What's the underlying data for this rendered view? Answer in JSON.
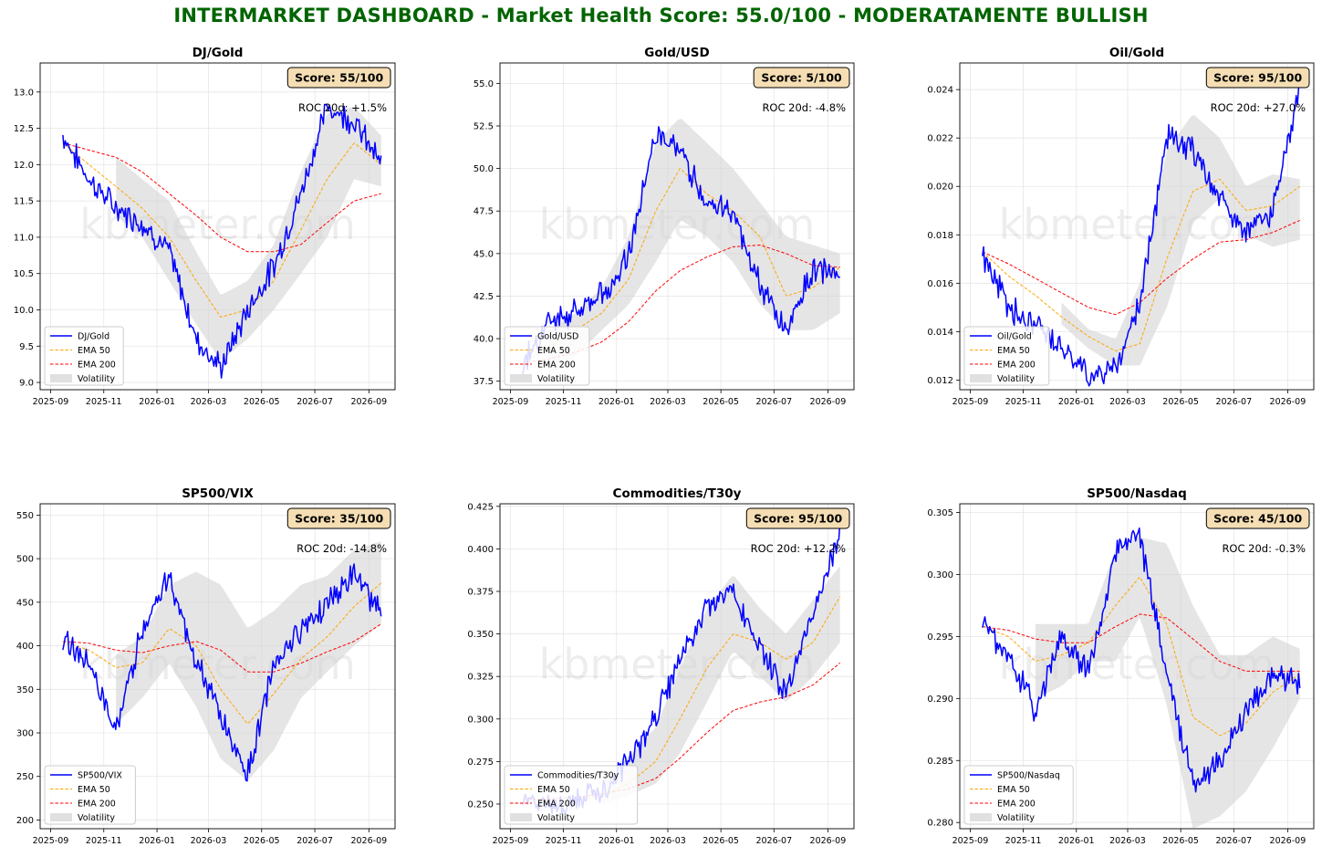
{
  "title": "INTERMARKET DASHBOARD - Market Health Score: 55.0/100 - MODERATAMENTE BULLISH",
  "watermark": "kbmeter.com",
  "colors": {
    "title": "#006400",
    "price": "#0000ff",
    "ema50": "#ffa500",
    "ema200": "#ff0000",
    "volatility": "#d3d3d3",
    "score_box": "#f5deb3"
  },
  "legend_labels": [
    "EMA 50",
    "EMA 200",
    "Volatility"
  ],
  "x_ticks": [
    "2025-09",
    "2025-11",
    "2026-01",
    "2026-03",
    "2026-05",
    "2026-07",
    "2026-09"
  ],
  "chart_data": [
    {
      "type": "line",
      "title": "DJ/Gold",
      "score": "Score: 55/100",
      "roc": "ROC 20d: +1.5%",
      "ylim": [
        8.9,
        13.4
      ],
      "yticks": [
        9.0,
        9.5,
        10.0,
        10.5,
        11.0,
        11.5,
        12.0,
        12.5,
        13.0
      ],
      "ydec": 1,
      "x": [
        "2025-09-15",
        "2025-10-15",
        "2025-11-15",
        "2025-12-15",
        "2026-01-15",
        "2026-02-15",
        "2026-03-15",
        "2026-04-15",
        "2026-05-15",
        "2026-06-15",
        "2026-07-15",
        "2026-08-15",
        "2026-09-15"
      ],
      "series": [
        {
          "name": "DJ/Gold",
          "values": [
            12.4,
            11.8,
            11.4,
            11.2,
            10.8,
            9.6,
            9.2,
            10.0,
            10.6,
            11.6,
            12.8,
            12.6,
            12.0
          ]
        },
        {
          "name": "EMA 50",
          "values": [
            12.3,
            12.0,
            11.7,
            11.4,
            11.0,
            10.4,
            9.9,
            10.0,
            10.4,
            11.1,
            11.8,
            12.3,
            12.0
          ]
        },
        {
          "name": "EMA 200",
          "values": [
            12.3,
            12.2,
            12.1,
            11.9,
            11.6,
            11.3,
            11.0,
            10.8,
            10.8,
            10.9,
            11.2,
            11.5,
            11.6
          ]
        }
      ],
      "volatility": {
        "upper": [
          null,
          null,
          12.1,
          11.8,
          11.5,
          10.8,
          10.2,
          10.4,
          10.9,
          11.9,
          12.7,
          12.8,
          12.4
        ],
        "lower": [
          null,
          null,
          11.3,
          11.0,
          10.4,
          9.8,
          9.3,
          9.6,
          10.0,
          10.5,
          11.0,
          11.8,
          11.7
        ]
      }
    },
    {
      "type": "line",
      "title": "Gold/USD",
      "score": "Score: 5/100",
      "roc": "ROC 20d: -4.8%",
      "ylim": [
        37.0,
        56.2
      ],
      "yticks": [
        37.5,
        40.0,
        42.5,
        45.0,
        47.5,
        50.0,
        52.5,
        55.0
      ],
      "ydec": 1,
      "x": [
        "2025-09-15",
        "2025-10-15",
        "2025-11-15",
        "2025-12-15",
        "2026-01-15",
        "2026-02-15",
        "2026-03-15",
        "2026-04-15",
        "2026-05-15",
        "2026-06-15",
        "2026-07-15",
        "2026-08-15",
        "2026-09-15"
      ],
      "series": [
        {
          "name": "Gold/USD",
          "values": [
            38.5,
            41.0,
            41.5,
            42.5,
            45.0,
            52.0,
            51.0,
            48.0,
            47.5,
            43.0,
            40.5,
            44.0,
            44.0
          ]
        },
        {
          "name": "EMA 50",
          "values": [
            38.6,
            39.5,
            40.5,
            41.5,
            43.5,
            47.5,
            50.0,
            48.5,
            47.5,
            46.0,
            42.5,
            43.0,
            44.2
          ]
        },
        {
          "name": "EMA 200",
          "values": [
            38.6,
            38.8,
            39.2,
            39.8,
            41.0,
            42.8,
            44.0,
            44.8,
            45.4,
            45.5,
            45.0,
            44.3,
            44.2
          ]
        }
      ],
      "volatility": {
        "upper": [
          null,
          40.5,
          41.5,
          43.0,
          46.0,
          51.5,
          53.0,
          51.5,
          50.0,
          48.0,
          46.0,
          45.5,
          45.0
        ],
        "lower": [
          null,
          37.8,
          39.0,
          40.5,
          42.0,
          44.5,
          47.0,
          46.0,
          44.5,
          42.0,
          40.5,
          40.5,
          41.5
        ]
      }
    },
    {
      "type": "line",
      "title": "Oil/Gold",
      "score": "Score: 95/100",
      "roc": "ROC 20d: +27.0%",
      "ylim": [
        0.0116,
        0.0251
      ],
      "yticks": [
        0.012,
        0.014,
        0.016,
        0.018,
        0.02,
        0.022,
        0.024
      ],
      "ydec": 3,
      "x": [
        "2025-09-15",
        "2025-10-15",
        "2025-11-15",
        "2025-12-15",
        "2026-01-15",
        "2026-02-15",
        "2026-03-15",
        "2026-04-15",
        "2026-05-15",
        "2026-06-15",
        "2026-07-15",
        "2026-08-15",
        "2026-09-15"
      ],
      "series": [
        {
          "name": "Oil/Gold",
          "values": [
            0.0172,
            0.015,
            0.0142,
            0.0135,
            0.0122,
            0.0125,
            0.0152,
            0.022,
            0.0215,
            0.0195,
            0.018,
            0.019,
            0.024
          ]
        },
        {
          "name": "EMA 50",
          "values": [
            0.0173,
            0.0163,
            0.0155,
            0.0146,
            0.0138,
            0.0132,
            0.0135,
            0.017,
            0.0198,
            0.0203,
            0.019,
            0.0192,
            0.02
          ]
        },
        {
          "name": "EMA 200",
          "values": [
            0.0173,
            0.0168,
            0.0162,
            0.0156,
            0.015,
            0.0147,
            0.0152,
            0.0162,
            0.017,
            0.0177,
            0.0178,
            0.0181,
            0.0186
          ]
        }
      ],
      "volatility": {
        "upper": [
          null,
          null,
          null,
          0.0152,
          0.0141,
          0.0137,
          0.016,
          0.0215,
          0.023,
          0.022,
          0.02,
          0.0205,
          0.0203
        ],
        "lower": [
          null,
          null,
          null,
          0.0143,
          0.0133,
          0.0126,
          0.0126,
          0.015,
          0.0185,
          0.0195,
          0.018,
          0.0175,
          0.0178
        ]
      }
    },
    {
      "type": "line",
      "title": "SP500/VIX",
      "score": "Score: 35/100",
      "roc": "ROC 20d: -14.8%",
      "ylim": [
        190,
        563
      ],
      "yticks": [
        200,
        250,
        300,
        350,
        400,
        450,
        500,
        550
      ],
      "ydec": 0,
      "x": [
        "2025-09-15",
        "2025-10-15",
        "2025-11-15",
        "2025-12-15",
        "2026-01-15",
        "2026-02-15",
        "2026-03-15",
        "2026-04-15",
        "2026-05-15",
        "2026-06-15",
        "2026-07-15",
        "2026-08-15",
        "2026-09-15"
      ],
      "series": [
        {
          "name": "SP500/VIX",
          "values": [
            410,
            380,
            300,
            420,
            480,
            380,
            320,
            250,
            380,
            420,
            450,
            480,
            440
          ]
        },
        {
          "name": "EMA 50",
          "values": [
            405,
            395,
            375,
            380,
            420,
            400,
            350,
            310,
            345,
            385,
            410,
            445,
            472
          ]
        },
        {
          "name": "EMA 200",
          "values": [
            405,
            403,
            395,
            392,
            400,
            405,
            395,
            370,
            370,
            380,
            393,
            405,
            425
          ]
        }
      ],
      "volatility": {
        "upper": [
          null,
          null,
          390,
          410,
          470,
          485,
          470,
          420,
          440,
          470,
          480,
          510,
          520
        ],
        "lower": [
          null,
          null,
          310,
          340,
          380,
          330,
          270,
          245,
          280,
          340,
          370,
          400,
          425
        ]
      }
    },
    {
      "type": "line",
      "title": "Commodities/T30y",
      "score": "Score: 95/100",
      "roc": "ROC 20d: +12.2%",
      "ylim": [
        0.2355,
        0.4265
      ],
      "yticks": [
        0.25,
        0.275,
        0.3,
        0.325,
        0.35,
        0.375,
        0.4,
        0.425
      ],
      "ydec": 3,
      "x": [
        "2025-09-15",
        "2025-10-15",
        "2025-11-15",
        "2025-12-15",
        "2026-01-15",
        "2026-02-15",
        "2026-03-15",
        "2026-04-15",
        "2026-05-15",
        "2026-06-15",
        "2026-07-15",
        "2026-08-15",
        "2026-09-15"
      ],
      "series": [
        {
          "name": "Commodities/T30y",
          "values": [
            0.252,
            0.25,
            0.252,
            0.258,
            0.275,
            0.3,
            0.335,
            0.365,
            0.375,
            0.34,
            0.315,
            0.36,
            0.41
          ]
        },
        {
          "name": "EMA 50",
          "values": [
            0.253,
            0.252,
            0.252,
            0.255,
            0.262,
            0.275,
            0.3,
            0.33,
            0.35,
            0.345,
            0.335,
            0.345,
            0.372
          ]
        },
        {
          "name": "EMA 200",
          "values": [
            0.253,
            0.253,
            0.254,
            0.256,
            0.259,
            0.265,
            0.277,
            0.292,
            0.305,
            0.31,
            0.313,
            0.32,
            0.333
          ]
        }
      ],
      "volatility": {
        "upper": [
          null,
          null,
          null,
          0.262,
          0.278,
          0.295,
          0.33,
          0.365,
          0.385,
          0.365,
          0.35,
          0.37,
          0.39
        ],
        "lower": [
          null,
          null,
          null,
          0.25,
          0.255,
          0.262,
          0.28,
          0.31,
          0.34,
          0.325,
          0.31,
          0.325,
          0.345
        ]
      }
    },
    {
      "type": "line",
      "title": "SP500/Nasdaq",
      "score": "Score: 45/100",
      "roc": "ROC 20d: -0.3%",
      "ylim": [
        0.2795,
        0.3057
      ],
      "yticks": [
        0.28,
        0.285,
        0.29,
        0.295,
        0.3,
        0.305
      ],
      "ydec": 3,
      "x": [
        "2025-09-15",
        "2025-10-15",
        "2025-11-15",
        "2025-12-15",
        "2026-01-15",
        "2026-02-15",
        "2026-03-15",
        "2026-04-15",
        "2026-05-15",
        "2026-06-15",
        "2026-07-15",
        "2026-08-15",
        "2026-09-15"
      ],
      "series": [
        {
          "name": "SP500/Nasdaq",
          "values": [
            0.296,
            0.2935,
            0.289,
            0.295,
            0.292,
            0.302,
            0.303,
            0.292,
            0.283,
            0.285,
            0.289,
            0.292,
            0.2912
          ]
        },
        {
          "name": "EMA 50",
          "values": [
            0.2958,
            0.295,
            0.293,
            0.2935,
            0.2945,
            0.2975,
            0.2998,
            0.296,
            0.2885,
            0.287,
            0.288,
            0.2905,
            0.292
          ]
        },
        {
          "name": "EMA 200",
          "values": [
            0.2958,
            0.2955,
            0.2948,
            0.2945,
            0.2945,
            0.2958,
            0.2968,
            0.2965,
            0.2948,
            0.293,
            0.2922,
            0.2922,
            0.2922
          ]
        }
      ],
      "volatility": {
        "upper": [
          null,
          null,
          0.296,
          0.296,
          0.296,
          0.302,
          0.303,
          0.3025,
          0.2975,
          0.2935,
          0.2935,
          0.295,
          0.294
        ]
      },
      "volatility_lower": null
    }
  ]
}
